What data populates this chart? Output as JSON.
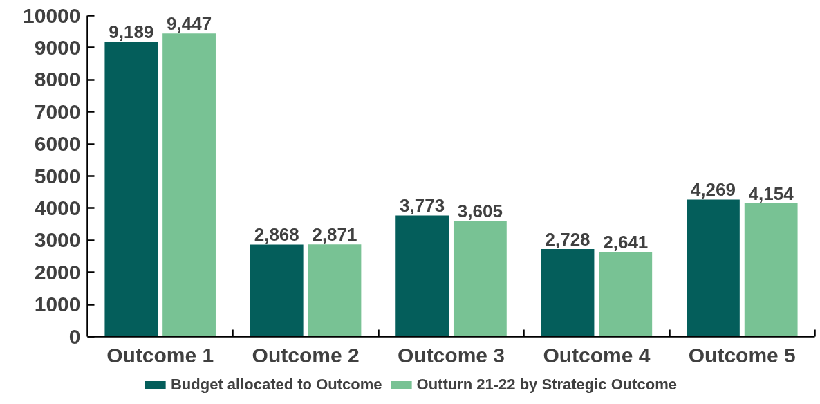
{
  "chart_data": {
    "type": "bar",
    "categories": [
      "Outcome 1",
      "Outcome 2",
      "Outcome 3",
      "Outcome 4",
      "Outcome 5"
    ],
    "series": [
      {
        "name": "Budget allocated to Outcome",
        "color": "#045e5b",
        "values": [
          9189,
          2868,
          3773,
          2728,
          4269
        ],
        "value_labels": [
          "9,189",
          "2,868",
          "3,773",
          "2,728",
          "4,269"
        ]
      },
      {
        "name": "Outturn 21-22 by Strategic Outcome",
        "color": "#78c294",
        "values": [
          9447,
          2871,
          3605,
          2641,
          4154
        ],
        "value_labels": [
          "9,447",
          "2,871",
          "3,605",
          "2,641",
          "4,154"
        ]
      }
    ],
    "ylim": [
      0,
      10000
    ],
    "yticks": [
      0,
      1000,
      2000,
      3000,
      4000,
      5000,
      6000,
      7000,
      8000,
      9000,
      10000
    ],
    "grid": false,
    "legend": "bottom"
  }
}
